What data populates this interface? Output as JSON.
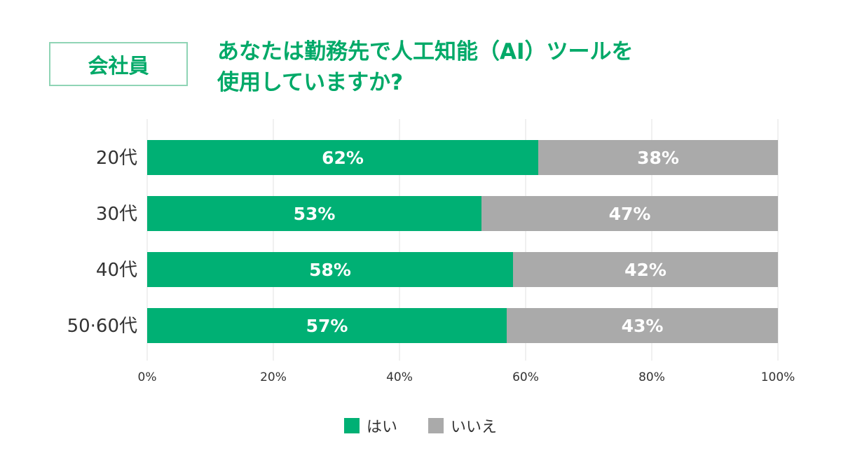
{
  "badge": "会社員",
  "title": {
    "line1": "あなたは勤務先で人工知能（AI）ツールを",
    "line2": "使用していますか?"
  },
  "colors": {
    "yes": "#00b074",
    "no": "#aaaaaa",
    "grid": "#e2e2e2",
    "accent": "#00a968"
  },
  "chart_data": {
    "type": "bar",
    "orientation": "horizontal",
    "stacked": true,
    "categories": [
      "20代",
      "30代",
      "40代",
      "50·60代"
    ],
    "series": [
      {
        "name": "はい",
        "values": [
          62,
          53,
          58,
          57
        ]
      },
      {
        "name": "いいえ",
        "values": [
          38,
          47,
          42,
          43
        ]
      }
    ],
    "data_labels": [
      [
        "62%",
        "53%",
        "58%",
        "57%"
      ],
      [
        "38%",
        "47%",
        "42%",
        "43%"
      ]
    ],
    "xlim": [
      0,
      100
    ],
    "x_ticks": [
      "0%",
      "20%",
      "40%",
      "60%",
      "80%",
      "100%"
    ],
    "grid": true,
    "legend_position": "bottom-center"
  },
  "legend": [
    {
      "label": "はい",
      "color": "#00b074"
    },
    {
      "label": "いいえ",
      "color": "#aaaaaa"
    }
  ]
}
